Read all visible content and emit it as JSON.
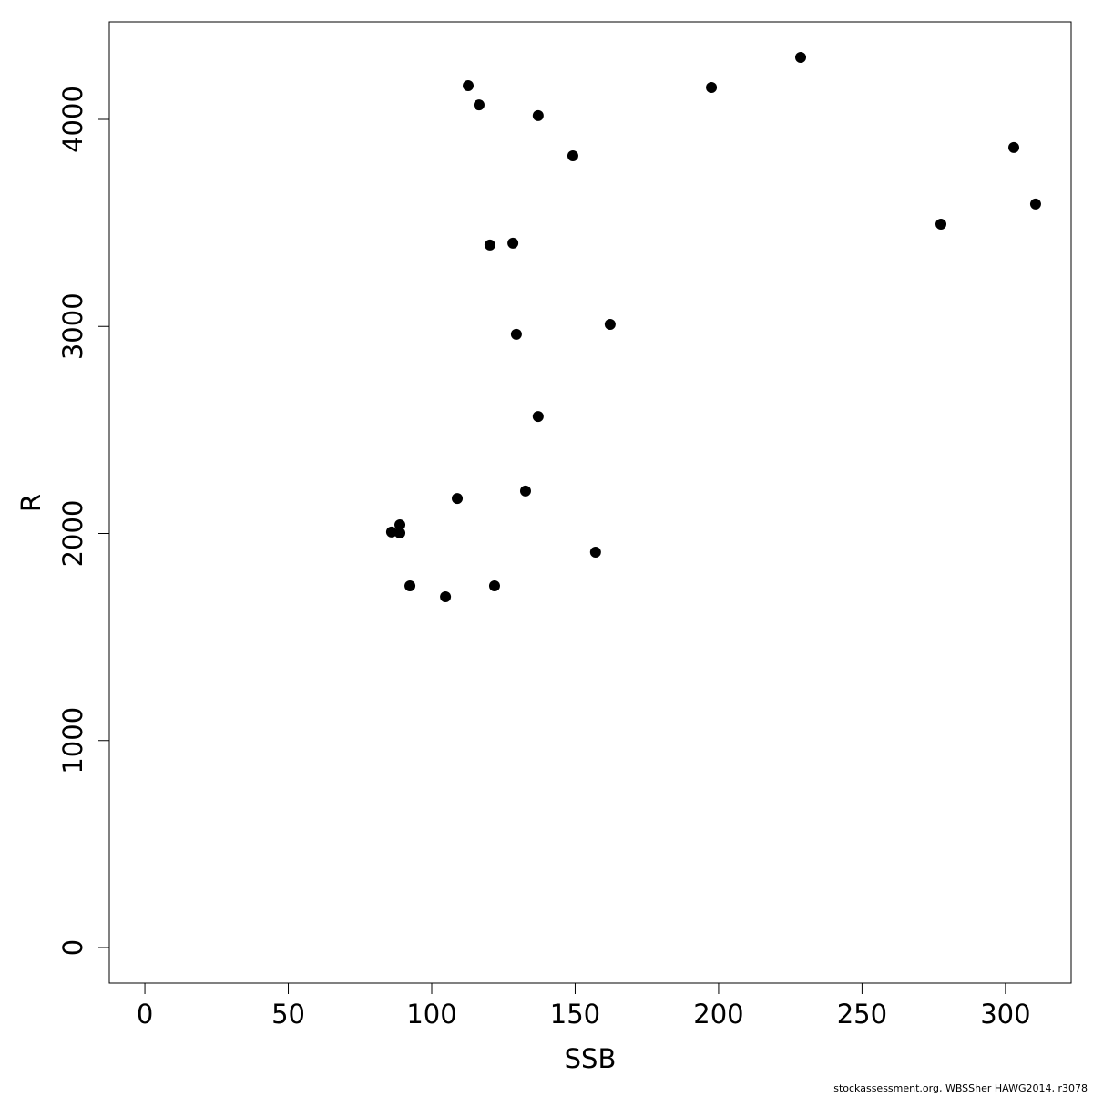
{
  "chart_data": {
    "type": "scatter",
    "x_label": "SSB",
    "y_label": "R",
    "footer": "stockassessment.org, WBSSher HAWG2014, r3078",
    "color": "#000000",
    "x": [
      112.7,
      116.5,
      137.1,
      149.2,
      197.5,
      228.6,
      302.9,
      310.5,
      277.5,
      120.3,
      128.3,
      162.2,
      129.5,
      137.1,
      132.7,
      108.9,
      88.9,
      86.0,
      88.9,
      157.1,
      92.4,
      121.9,
      104.8
    ],
    "values": [
      4163,
      4070,
      4018,
      3824,
      4154,
      4299,
      3864,
      3591,
      3494,
      3393,
      3402,
      3010,
      2962,
      2565,
      2205,
      2169,
      2042,
      2007,
      2002,
      1910,
      1747,
      1747,
      1694
    ],
    "xlim": [
      -12.4,
      322.9
    ],
    "xticks": [
      0,
      50,
      100,
      150,
      200,
      250,
      300
    ],
    "ylim": [
      -171.6,
      4470.8
    ],
    "yticks": [
      0,
      1000,
      2000,
      3000,
      4000
    ]
  }
}
